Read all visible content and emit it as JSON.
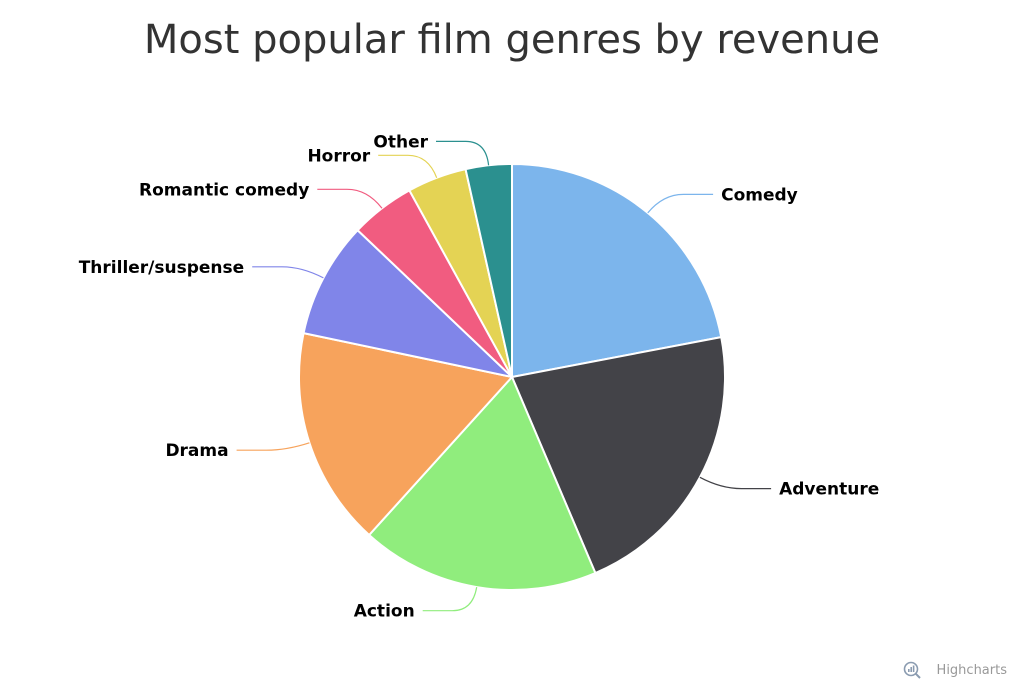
{
  "chart_data": {
    "type": "pie",
    "title": "Most popular film genres by revenue",
    "start_angle_deg": 0,
    "direction": "clockwise",
    "slices": [
      {
        "name": "Comedy",
        "value": 22,
        "color": "#7cb5ec"
      },
      {
        "name": "Adventure",
        "value": 21.6,
        "color": "#434348"
      },
      {
        "name": "Action",
        "value": 18.1,
        "color": "#90ed7d"
      },
      {
        "name": "Drama",
        "value": 16.6,
        "color": "#f7a35c"
      },
      {
        "name": "Thriller/suspense",
        "value": 8.8,
        "color": "#8085e9"
      },
      {
        "name": "Romantic comedy",
        "value": 4.9,
        "color": "#f15c80"
      },
      {
        "name": "Horror",
        "value": 4.5,
        "color": "#e4d354"
      },
      {
        "name": "Other",
        "value": 3.5,
        "color": "#2b908f"
      }
    ]
  },
  "credits": {
    "text": "Highcharts",
    "icon": "highcharts-logo-icon"
  }
}
